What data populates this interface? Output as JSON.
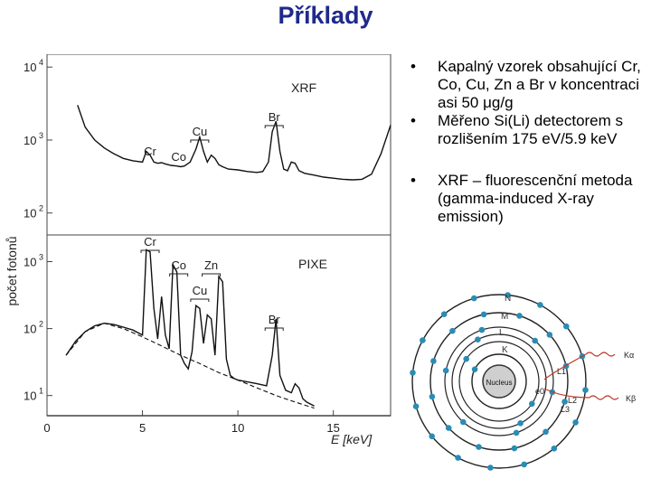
{
  "title": "Příklady",
  "bullets": [
    {
      "pre": "Kapalný vzorek obsahující Cr, Co, Cu, Zn a Br v koncentraci asi 50 ",
      "greek": "μ",
      "post": "g/g"
    },
    {
      "pre": "Měřeno Si(Li) detectorem s rozlišením 175 eV/5.9 keV",
      "greek": "",
      "post": ""
    },
    {
      "pre": "XRF – fluorescenční metoda (gamma-induced X-ray emission)",
      "greek": "",
      "post": ""
    }
  ],
  "bullet_symbol": "•",
  "chart_data": [
    {
      "type": "line",
      "panel": "XRF",
      "ylabel": "počet fotonů",
      "y_scale": "log",
      "ylim": [
        50,
        15000
      ],
      "xlim": [
        0,
        18
      ],
      "y_ticks": [
        {
          "base": "10",
          "exp": "2",
          "value": 100
        },
        {
          "base": "10",
          "exp": "3",
          "value": 1000
        },
        {
          "base": "10",
          "exp": "4",
          "value": 10000
        }
      ],
      "peaks": [
        {
          "label": "Cr",
          "energy": 5.4
        },
        {
          "label": "Co",
          "energy": 6.9
        },
        {
          "label": "Cu",
          "energy": 8.0
        },
        {
          "label": "Br",
          "energy": 11.9
        }
      ],
      "x": [
        1.6,
        2.0,
        2.5,
        3.0,
        3.5,
        4.0,
        4.5,
        5.0,
        5.2,
        5.4,
        5.6,
        5.8,
        6.0,
        6.2,
        6.5,
        6.8,
        7.0,
        7.2,
        7.5,
        7.8,
        8.0,
        8.2,
        8.4,
        8.6,
        8.8,
        9.0,
        9.2,
        9.5,
        10.0,
        10.5,
        11.0,
        11.3,
        11.6,
        11.8,
        12.0,
        12.2,
        12.4,
        12.6,
        12.8,
        13.0,
        13.2,
        13.5,
        14.0,
        14.5,
        15.0,
        15.5,
        16.0,
        16.5,
        17.0,
        17.5,
        18.0
      ],
      "y": [
        3000,
        1500,
        1000,
        780,
        650,
        560,
        520,
        500,
        700,
        620,
        500,
        480,
        490,
        470,
        450,
        440,
        430,
        440,
        500,
        750,
        1100,
        700,
        500,
        620,
        560,
        460,
        430,
        400,
        390,
        370,
        360,
        370,
        500,
        1300,
        1800,
        700,
        400,
        380,
        500,
        480,
        380,
        350,
        330,
        310,
        300,
        290,
        285,
        290,
        340,
        650,
        1600
      ]
    },
    {
      "type": "line",
      "panel": "PIXE",
      "y_scale": "log",
      "ylim": [
        5,
        2500
      ],
      "xlim": [
        0,
        18
      ],
      "xlabel": "E [keV]",
      "x_ticks": [
        0,
        5,
        10,
        15
      ],
      "y_ticks": [
        {
          "base": "10",
          "exp": "1",
          "value": 10
        },
        {
          "base": "10",
          "exp": "2",
          "value": 100
        },
        {
          "base": "10",
          "exp": "3",
          "value": 1000
        }
      ],
      "peaks": [
        {
          "label": "Cr",
          "energy": 5.4
        },
        {
          "label": "Co",
          "energy": 6.9
        },
        {
          "label": "Zn",
          "energy": 8.6
        },
        {
          "label": "Cu",
          "energy": 8.0
        },
        {
          "label": "Br",
          "energy": 11.9
        }
      ],
      "x": [
        1.0,
        1.5,
        2.0,
        2.5,
        3.0,
        3.5,
        4.0,
        4.5,
        5.0,
        5.2,
        5.4,
        5.6,
        5.8,
        6.0,
        6.2,
        6.4,
        6.6,
        6.8,
        7.0,
        7.2,
        7.4,
        7.6,
        7.8,
        8.0,
        8.2,
        8.4,
        8.6,
        8.8,
        9.0,
        9.2,
        9.4,
        9.6,
        9.8,
        10.0,
        10.5,
        11.0,
        11.5,
        11.8,
        12.0,
        12.2,
        12.5,
        12.8,
        13.0,
        13.2,
        13.4,
        13.6,
        14.0
      ],
      "y": [
        40,
        65,
        90,
        110,
        120,
        115,
        105,
        95,
        80,
        1500,
        1400,
        200,
        70,
        300,
        80,
        50,
        900,
        700,
        40,
        30,
        25,
        45,
        220,
        200,
        60,
        160,
        140,
        40,
        600,
        500,
        35,
        20,
        18,
        17,
        16,
        15,
        14,
        40,
        140,
        20,
        12,
        11,
        15,
        13,
        9,
        8,
        7
      ],
      "background": {
        "x": [
          1.0,
          2.0,
          3.0,
          4.0,
          5.0,
          6.0,
          7.0,
          8.0,
          9.0,
          10.0,
          11.0,
          12.0,
          13.0,
          14.0
        ],
        "y": [
          40,
          90,
          120,
          100,
          75,
          55,
          40,
          30,
          22,
          17,
          13,
          10,
          8,
          6.5
        ]
      }
    }
  ],
  "atom": {
    "nucleus_label": "Nucleus",
    "shell_labels": [
      "N",
      "M",
      "L",
      "K"
    ],
    "subshell_labels": [
      "L2",
      "L3",
      "L1"
    ],
    "k_electron_label": "e0",
    "photon_labels": [
      "Kα",
      "Kβ"
    ]
  }
}
